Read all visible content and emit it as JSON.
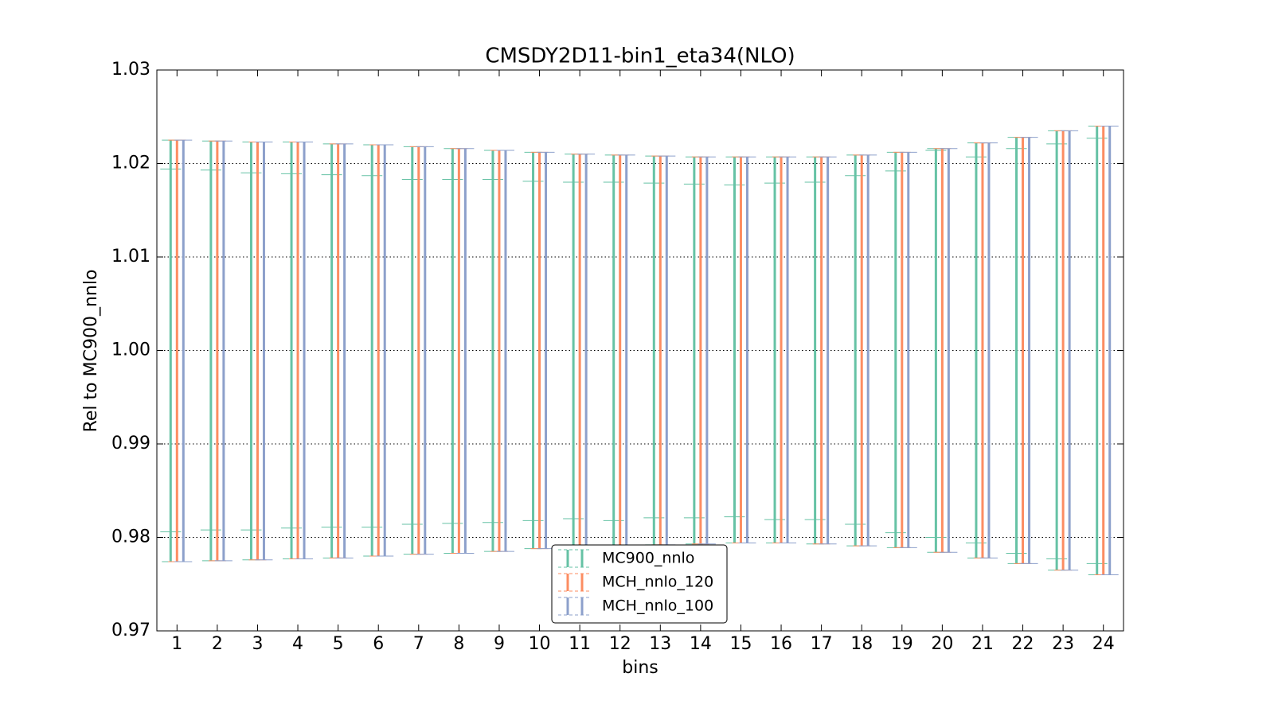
{
  "chart_data": {
    "type": "errorbar",
    "title": "CMSDY2D11-bin1_eta34(NLO)",
    "x_label": "bins",
    "y_label": "Rel to MC900_nnlo",
    "x": [
      1,
      2,
      3,
      4,
      5,
      6,
      7,
      8,
      9,
      10,
      11,
      12,
      13,
      14,
      15,
      16,
      17,
      18,
      19,
      20,
      21,
      22,
      23,
      24
    ],
    "xlim": [
      0.5,
      24.5
    ],
    "xticks": [
      1,
      2,
      3,
      4,
      5,
      6,
      7,
      8,
      9,
      10,
      11,
      12,
      13,
      14,
      15,
      16,
      17,
      18,
      19,
      20,
      21,
      22,
      23,
      24
    ],
    "ylim": [
      0.97,
      1.03
    ],
    "yticks": [
      0.97,
      0.98,
      0.99,
      {
        "value": 1,
        "label": "1.00"
      },
      1.01,
      1.02,
      1.03
    ],
    "grid": true,
    "legend": "lower center",
    "series": [
      {
        "name": "MC900_nnlo",
        "color": "#66c2a5",
        "upper": [
          1.0225,
          1.0224,
          1.0223,
          1.0223,
          1.0221,
          1.022,
          1.0218,
          1.0216,
          1.0214,
          1.0212,
          1.021,
          1.0209,
          1.0208,
          1.0207,
          1.0207,
          1.0207,
          1.0207,
          1.0209,
          1.0212,
          1.0216,
          1.0222,
          1.0228,
          1.0235,
          1.024
        ],
        "lower": [
          0.9774,
          0.9775,
          0.9776,
          0.9777,
          0.9778,
          0.978,
          0.9782,
          0.9783,
          0.9785,
          0.9788,
          0.9789,
          0.9791,
          0.9792,
          0.9793,
          0.9794,
          0.9794,
          0.9793,
          0.9791,
          0.9789,
          0.9784,
          0.9778,
          0.9772,
          0.9765,
          0.976
        ],
        "inner_upper": [
          1.0194,
          1.0193,
          1.019,
          1.0189,
          1.0188,
          1.0187,
          1.0183,
          1.0183,
          1.0183,
          1.0181,
          1.018,
          1.018,
          1.0179,
          1.0178,
          1.0177,
          1.0179,
          1.018,
          1.0187,
          1.0192,
          1.0214,
          1.0207,
          1.0216,
          1.0221,
          1.0227
        ],
        "inner_lower": [
          0.9806,
          0.9808,
          0.9808,
          0.981,
          0.9811,
          0.9811,
          0.9814,
          0.9815,
          0.9816,
          0.9818,
          0.982,
          0.9818,
          0.9821,
          0.9821,
          0.9822,
          0.9819,
          0.9819,
          0.9814,
          0.9805,
          0.98,
          0.9794,
          0.9783,
          0.9777,
          0.9772
        ]
      },
      {
        "name": "MCH_nnlo_120",
        "color": "#fc8d62",
        "upper": [
          1.0225,
          1.0224,
          1.0223,
          1.0223,
          1.0221,
          1.022,
          1.0218,
          1.0216,
          1.0214,
          1.0212,
          1.021,
          1.0209,
          1.0208,
          1.0207,
          1.0207,
          1.0207,
          1.0207,
          1.0209,
          1.0212,
          1.0216,
          1.0222,
          1.0228,
          1.0235,
          1.024
        ],
        "lower": [
          0.9774,
          0.9775,
          0.9776,
          0.9777,
          0.9778,
          0.978,
          0.9782,
          0.9783,
          0.9785,
          0.9788,
          0.9789,
          0.9791,
          0.9792,
          0.9793,
          0.9794,
          0.9794,
          0.9793,
          0.9791,
          0.9789,
          0.9784,
          0.9778,
          0.9772,
          0.9765,
          0.976
        ]
      },
      {
        "name": "MCH_nnlo_100",
        "color": "#8da0cb",
        "upper": [
          1.0225,
          1.0224,
          1.0223,
          1.0223,
          1.0221,
          1.022,
          1.0218,
          1.0216,
          1.0214,
          1.0212,
          1.021,
          1.0209,
          1.0208,
          1.0207,
          1.0207,
          1.0207,
          1.0207,
          1.0209,
          1.0212,
          1.0216,
          1.0222,
          1.0228,
          1.0235,
          1.024
        ],
        "lower": [
          0.9774,
          0.9775,
          0.9776,
          0.9777,
          0.9778,
          0.978,
          0.9782,
          0.9783,
          0.9785,
          0.9788,
          0.9789,
          0.9791,
          0.9792,
          0.9793,
          0.9794,
          0.9794,
          0.9793,
          0.9791,
          0.9789,
          0.9784,
          0.9778,
          0.9772,
          0.9765,
          0.976
        ]
      }
    ]
  }
}
